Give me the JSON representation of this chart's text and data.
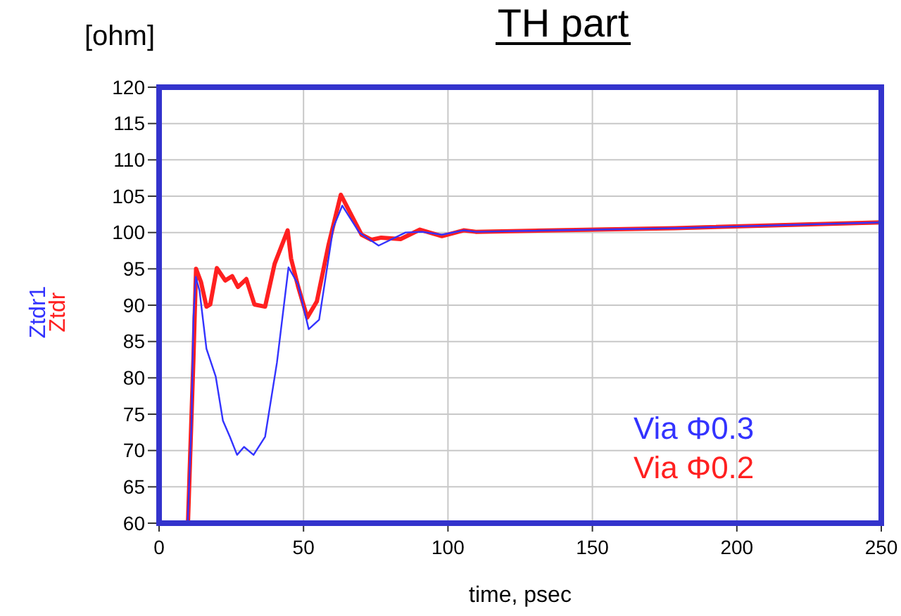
{
  "chart_data": {
    "type": "line",
    "title": "TH part",
    "ylabel": "[ohm]",
    "xlabel": "time, psec",
    "annotations": [
      "Ztdr1",
      "Ztdr"
    ],
    "xlim": [
      0,
      250
    ],
    "xticks": [
      0,
      50,
      100,
      150,
      200,
      250
    ],
    "ylim": [
      60,
      120
    ],
    "yticks": [
      60,
      65,
      70,
      75,
      80,
      85,
      90,
      95,
      100,
      105,
      110,
      115,
      120
    ],
    "grid": true,
    "legend": "bottom right",
    "line_style": "solid",
    "series": [
      {
        "name": "Via Φ0.3",
        "color": "#3333ff",
        "x": [
          9.9,
          10.7,
          11.2,
          11.9,
          12.7,
          14.0,
          16.4,
          19.6,
          22.1,
          24.5,
          27.0,
          29.4,
          32.7,
          36.7,
          40.8,
          44.8,
          48.1,
          51.8,
          55.4,
          60.3,
          63.4,
          69.3,
          76.0,
          85.3,
          91.1,
          97.9,
          105.4,
          109.6,
          178.5,
          250
        ],
        "values": [
          60.1,
          68.5,
          73.4,
          88.3,
          93.9,
          92.0,
          84.0,
          80.2,
          74.1,
          71.9,
          69.4,
          70.5,
          69.4,
          71.9,
          82.1,
          95.2,
          92.9,
          86.7,
          88.0,
          100.7,
          103.7,
          100.0,
          98.2,
          100.0,
          100.1,
          99.7,
          100.3,
          100.1,
          100.6,
          101.4
        ]
      },
      {
        "name": "Via Φ0.2",
        "color": "#ff2020",
        "x": [
          10,
          10.7,
          11.9,
          12.8,
          14.5,
          16.4,
          17.7,
          20,
          22.9,
          25.3,
          27.3,
          30.2,
          33.0,
          36.7,
          40,
          44.5,
          45.7,
          48.1,
          51.3,
          54.6,
          58.6,
          62.9,
          70.1,
          73.5,
          76.9,
          83.6,
          90.3,
          97.9,
          105.4,
          109.6,
          178.5,
          250
        ],
        "values": [
          60,
          68.5,
          82.7,
          95.0,
          93.2,
          89.8,
          90.1,
          95.1,
          93.4,
          94.0,
          92.5,
          93.6,
          90.1,
          89.8,
          95.7,
          100.3,
          96.4,
          92.6,
          88.3,
          90.5,
          98.2,
          105.2,
          99.7,
          99.0,
          99.3,
          99.1,
          100.4,
          99.5,
          100.3,
          100.1,
          100.6,
          101.4
        ]
      }
    ]
  }
}
